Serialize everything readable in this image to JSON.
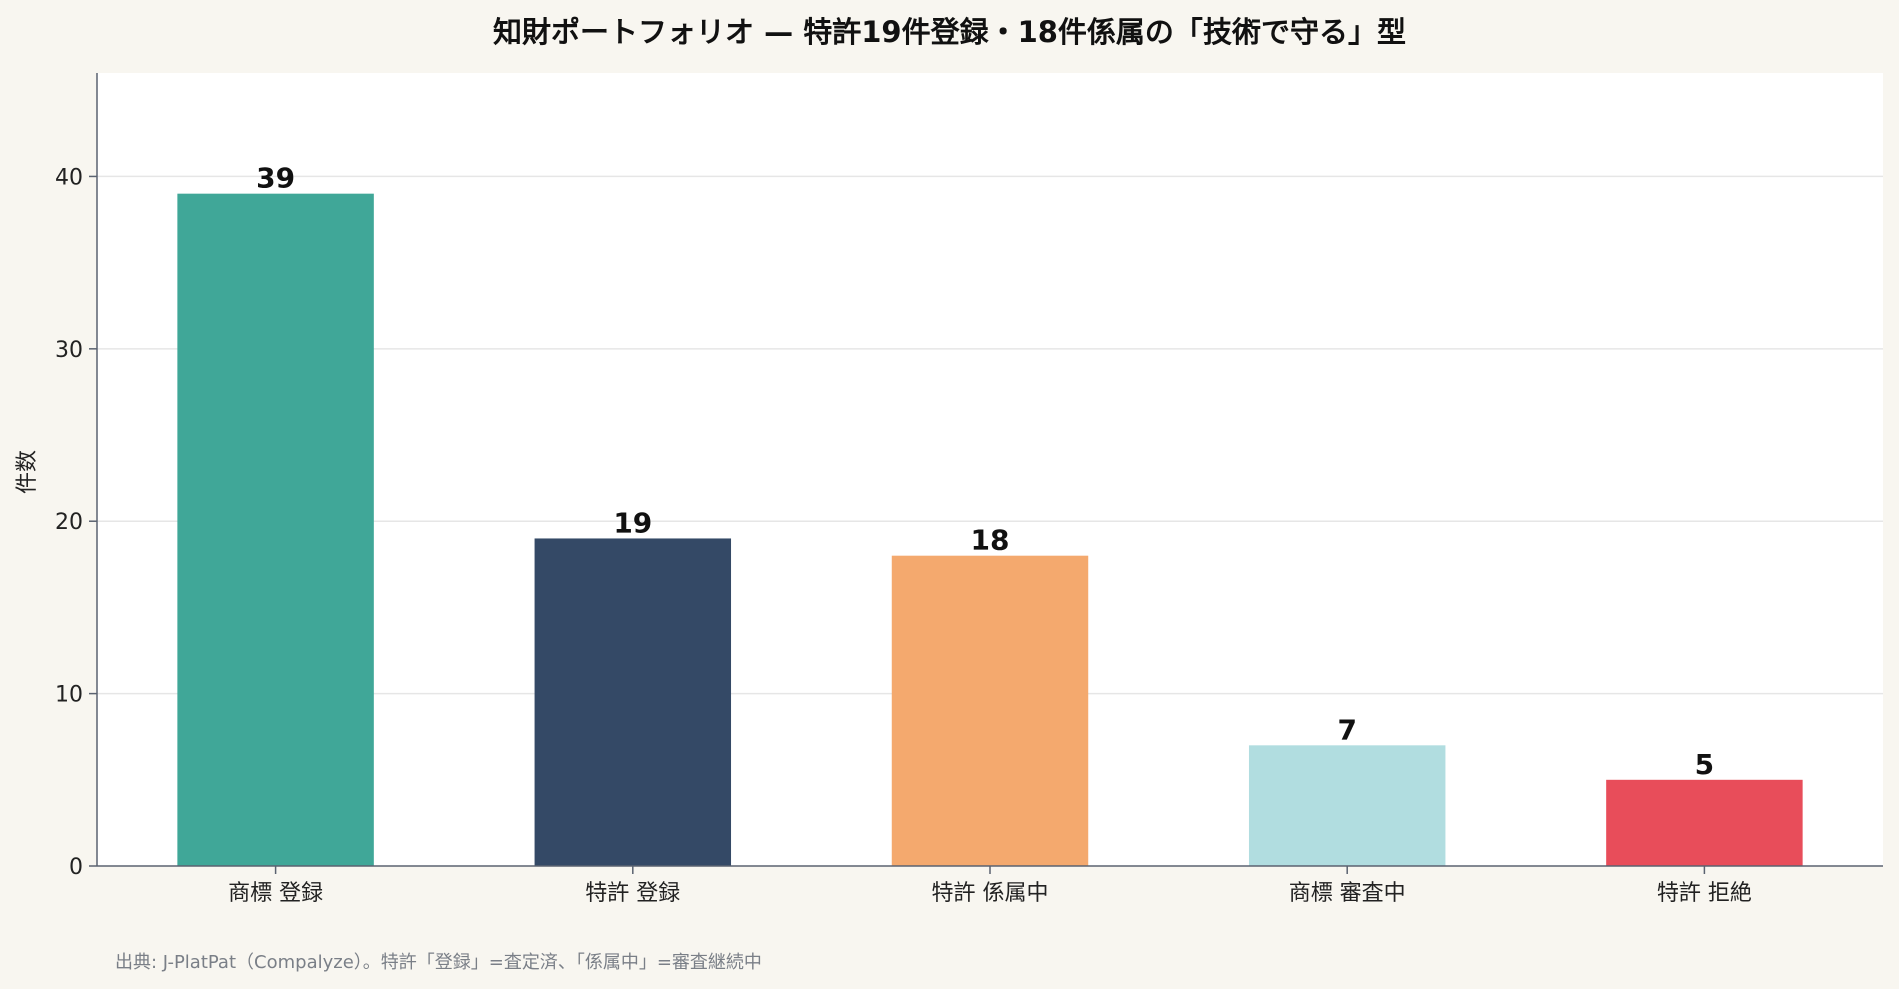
{
  "chart_data": {
    "type": "bar",
    "title": "知財ポートフォリオ — 特許19件登録・18件係属の「技術で守る」型",
    "xlabel": "",
    "ylabel": "件数",
    "categories": [
      "商標 登録",
      "特許 登録",
      "特許 係属中",
      "商標 審査中",
      "特許 拒絶"
    ],
    "values": [
      39,
      19,
      18,
      7,
      5
    ],
    "colors": [
      "#40a798",
      "#344966",
      "#f4a96e",
      "#b1dde0",
      "#e84d5a"
    ],
    "ylim": [
      0,
      46
    ],
    "yticks": [
      0,
      10,
      20,
      30,
      40
    ],
    "grid": true,
    "legend": "none",
    "source_note": "出典: J-PlatPat（Compalyze）。特許「登録」=査定済、「係属中」=審査継続中"
  },
  "colors": {
    "page_background": "#f8f6f0",
    "plot_background": "#ffffff",
    "grid": "#e6e6e6",
    "axis": "#5a6270"
  }
}
